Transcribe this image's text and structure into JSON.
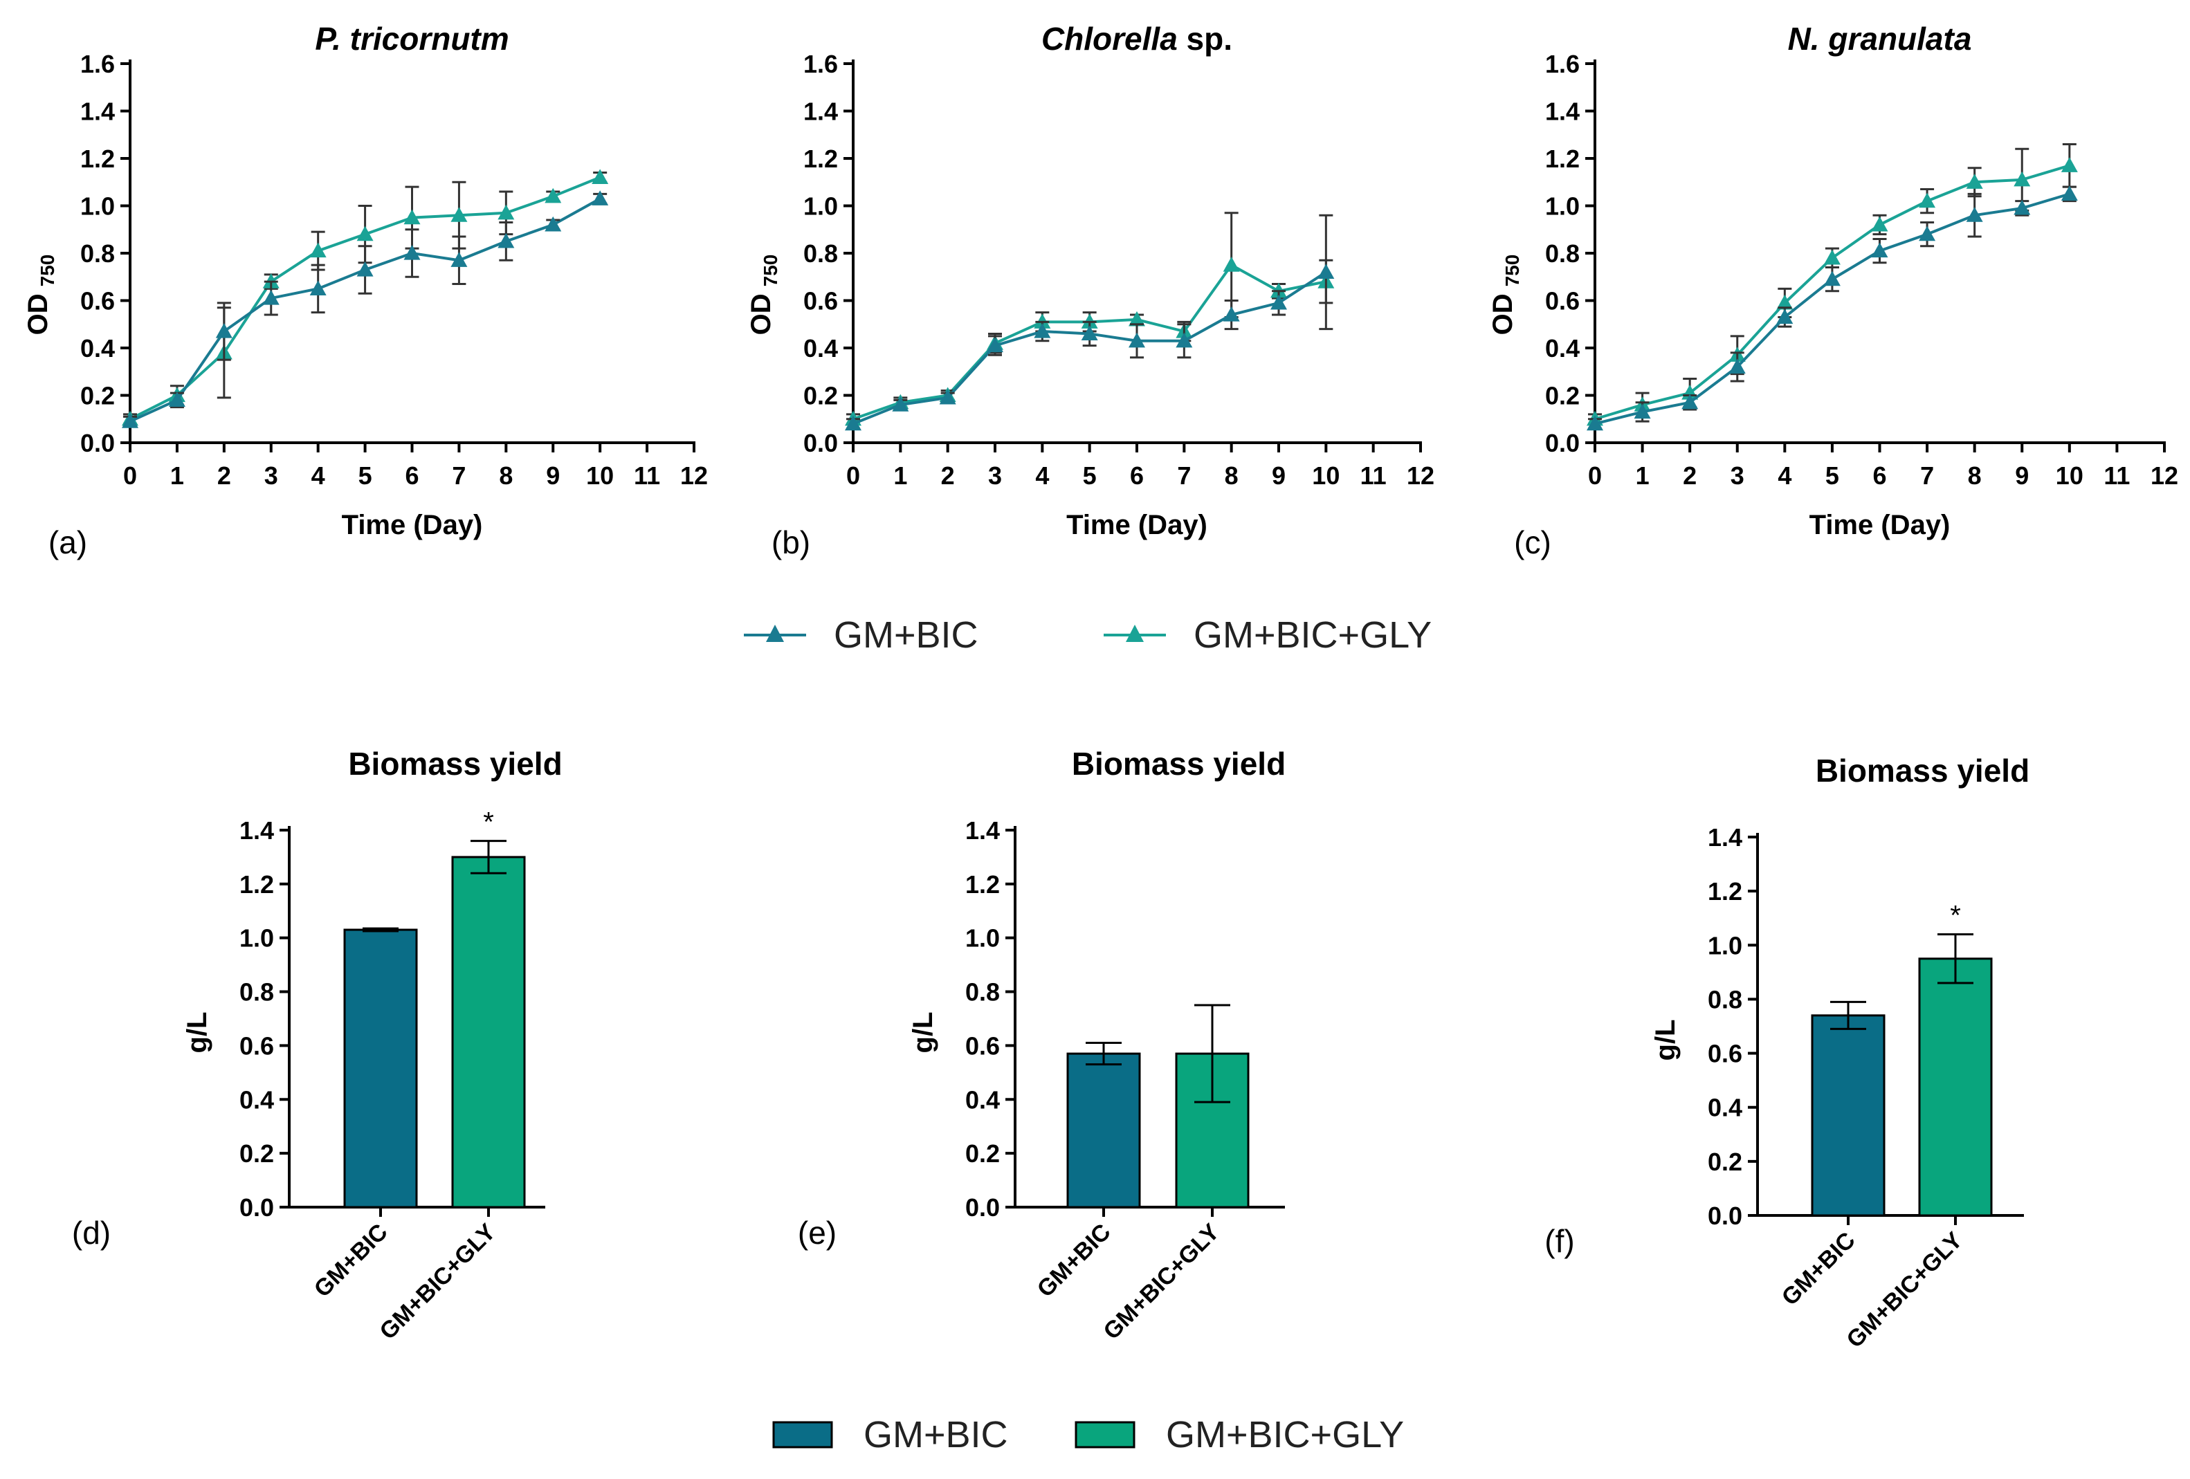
{
  "colors": {
    "gm_bic": "#1a7b91",
    "gm_bic_gly": "#1aa396",
    "bar_gm_bic": "#0a6d87",
    "bar_gm_bic_gly": "#09a57d",
    "axis": "#000000"
  },
  "line_legend": {
    "entries": [
      {
        "label": "GM+BIC",
        "marker": "triangle-icon"
      },
      {
        "label": "GM+BIC+GLY",
        "marker": "triangle-icon"
      }
    ]
  },
  "bar_legend": {
    "entries": [
      {
        "label": "GM+BIC"
      },
      {
        "label": "GM+BIC+GLY"
      }
    ]
  },
  "chart_data": [
    {
      "type": "line",
      "panel_label": "(a)",
      "title": "P. tricornutm",
      "title_italic": true,
      "title_suffix": "",
      "xlabel": "Time (Day)",
      "ylabel": "OD",
      "ylabel_sub": "750",
      "xlim": [
        0,
        12
      ],
      "ylim": [
        0,
        1.6
      ],
      "xticks": [
        "0",
        "1",
        "2",
        "3",
        "4",
        "5",
        "6",
        "7",
        "8",
        "9",
        "10",
        "11",
        "12"
      ],
      "yticks": [
        "0.0",
        "0.2",
        "0.4",
        "0.6",
        "0.8",
        "1.0",
        "1.2",
        "1.4",
        "1.6"
      ],
      "x": [
        0,
        1,
        2,
        3,
        4,
        5,
        6,
        7,
        8,
        9,
        10
      ],
      "series": [
        {
          "name": "GM+BIC",
          "values": [
            0.09,
            0.18,
            0.47,
            0.61,
            0.65,
            0.73,
            0.8,
            0.77,
            0.85,
            0.92,
            1.03
          ],
          "errors": [
            0.02,
            0.03,
            0.12,
            0.07,
            0.1,
            0.1,
            0.1,
            0.1,
            0.08,
            0.02,
            0.02
          ]
        },
        {
          "name": "GM+BIC+GLY",
          "values": [
            0.1,
            0.2,
            0.38,
            0.68,
            0.81,
            0.88,
            0.95,
            0.96,
            0.97,
            1.04,
            1.12
          ],
          "errors": [
            0.02,
            0.04,
            0.19,
            0.03,
            0.08,
            0.12,
            0.13,
            0.14,
            0.09,
            0.02,
            0.02
          ]
        }
      ]
    },
    {
      "type": "line",
      "panel_label": "(b)",
      "title": "Chlorella",
      "title_italic": true,
      "title_suffix": " sp.",
      "xlabel": "Time (Day)",
      "ylabel": "OD",
      "ylabel_sub": "750",
      "xlim": [
        0,
        12
      ],
      "ylim": [
        0,
        1.6
      ],
      "xticks": [
        "0",
        "1",
        "2",
        "3",
        "4",
        "5",
        "6",
        "7",
        "8",
        "9",
        "10",
        "11",
        "12"
      ],
      "yticks": [
        "0.0",
        "0.2",
        "0.4",
        "0.6",
        "0.8",
        "1.0",
        "1.2",
        "1.4",
        "1.6"
      ],
      "x": [
        0,
        1,
        2,
        3,
        4,
        5,
        6,
        7,
        8,
        9,
        10
      ],
      "series": [
        {
          "name": "GM+BIC",
          "values": [
            0.08,
            0.16,
            0.19,
            0.41,
            0.47,
            0.46,
            0.43,
            0.43,
            0.54,
            0.59,
            0.72
          ],
          "errors": [
            0.02,
            0.02,
            0.02,
            0.04,
            0.04,
            0.05,
            0.07,
            0.07,
            0.06,
            0.05,
            0.24
          ]
        },
        {
          "name": "GM+BIC+GLY",
          "values": [
            0.1,
            0.17,
            0.2,
            0.42,
            0.51,
            0.51,
            0.52,
            0.47,
            0.75,
            0.64,
            0.68
          ],
          "errors": [
            0.02,
            0.02,
            0.02,
            0.04,
            0.04,
            0.04,
            0.02,
            0.04,
            0.22,
            0.03,
            0.09
          ]
        }
      ]
    },
    {
      "type": "line",
      "panel_label": "(c)",
      "title": "N. granulata",
      "title_italic": true,
      "title_suffix": "",
      "xlabel": "Time (Day)",
      "ylabel": "OD",
      "ylabel_sub": "750",
      "xlim": [
        0,
        12
      ],
      "ylim": [
        0,
        1.6
      ],
      "xticks": [
        "0",
        "1",
        "2",
        "3",
        "4",
        "5",
        "6",
        "7",
        "8",
        "9",
        "10",
        "11",
        "12"
      ],
      "yticks": [
        "0.0",
        "0.2",
        "0.4",
        "0.6",
        "0.8",
        "1.0",
        "1.2",
        "1.4",
        "1.6"
      ],
      "x": [
        0,
        1,
        2,
        3,
        4,
        5,
        6,
        7,
        8,
        9,
        10
      ],
      "series": [
        {
          "name": "GM+BIC",
          "values": [
            0.08,
            0.13,
            0.17,
            0.32,
            0.53,
            0.69,
            0.81,
            0.88,
            0.96,
            0.99,
            1.05
          ],
          "errors": [
            0.02,
            0.04,
            0.03,
            0.06,
            0.04,
            0.05,
            0.05,
            0.05,
            0.09,
            0.03,
            0.03
          ]
        },
        {
          "name": "GM+BIC+GLY",
          "values": [
            0.1,
            0.16,
            0.21,
            0.37,
            0.59,
            0.78,
            0.92,
            1.02,
            1.1,
            1.11,
            1.17
          ],
          "errors": [
            0.02,
            0.05,
            0.06,
            0.08,
            0.06,
            0.04,
            0.04,
            0.05,
            0.06,
            0.13,
            0.09
          ]
        }
      ]
    },
    {
      "type": "bar",
      "panel_label": "(d)",
      "title": "Biomass yield",
      "ylabel": "g/L",
      "ylim": [
        0,
        1.4
      ],
      "yticks": [
        "0.0",
        "0.2",
        "0.4",
        "0.6",
        "0.8",
        "1.0",
        "1.2",
        "1.4"
      ],
      "categories": [
        "GM+BIC",
        "GM+BIC+GLY"
      ],
      "values": [
        1.03,
        1.3
      ],
      "errors": [
        0.005,
        0.06
      ],
      "annotations": [
        "",
        "*"
      ]
    },
    {
      "type": "bar",
      "panel_label": "(e)",
      "title": "Biomass yield",
      "ylabel": "g/L",
      "ylim": [
        0,
        1.4
      ],
      "yticks": [
        "0.0",
        "0.2",
        "0.4",
        "0.6",
        "0.8",
        "1.0",
        "1.2",
        "1.4"
      ],
      "categories": [
        "GM+BIC",
        "GM+BIC+GLY"
      ],
      "values": [
        0.57,
        0.57
      ],
      "errors": [
        0.04,
        0.18
      ],
      "annotations": [
        "",
        ""
      ]
    },
    {
      "type": "bar",
      "panel_label": "(f)",
      "title": "Biomass yield",
      "ylabel": "g/L",
      "ylim": [
        0,
        1.4
      ],
      "yticks": [
        "0.0",
        "0.2",
        "0.4",
        "0.6",
        "0.8",
        "1.0",
        "1.2",
        "1.4"
      ],
      "categories": [
        "GM+BIC",
        "GM+BIC+GLY"
      ],
      "values": [
        0.74,
        0.95
      ],
      "errors": [
        0.05,
        0.09
      ],
      "annotations": [
        "",
        "*"
      ]
    }
  ]
}
